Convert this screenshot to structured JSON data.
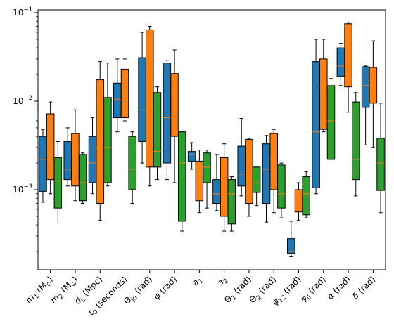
{
  "chart_data": {
    "type": "box",
    "title": "",
    "xlabel": "",
    "ylabel": "",
    "yscale": "log",
    "ylim": [
      0.0001,
      0.1
    ],
    "y_ticks": [
      {
        "value": 0.1,
        "base": "10",
        "exp": "−1"
      },
      {
        "value": 0.01,
        "base": "10",
        "exp": "−2"
      },
      {
        "value": 0.001,
        "base": "10",
        "exp": "−3"
      }
    ],
    "categories": [
      {
        "id": "m1",
        "parts": [
          {
            "t": "m",
            "i": true
          },
          {
            "t": "1",
            "sub": true
          },
          {
            "t": " (M"
          },
          {
            "t": "⊙",
            "sub": true
          },
          {
            "t": ")"
          }
        ]
      },
      {
        "id": "m2",
        "parts": [
          {
            "t": "m",
            "i": true
          },
          {
            "t": "2",
            "sub": true
          },
          {
            "t": " (M"
          },
          {
            "t": "⊙",
            "sub": true
          },
          {
            "t": ")"
          }
        ]
      },
      {
        "id": "dL",
        "parts": [
          {
            "t": "d",
            "i": true
          },
          {
            "t": "L",
            "sub": true
          },
          {
            "t": " (Mpc)"
          }
        ]
      },
      {
        "id": "t0",
        "parts": [
          {
            "t": "t",
            "i": true
          },
          {
            "t": "0",
            "sub": true
          },
          {
            "t": " (seconds)"
          }
        ]
      },
      {
        "id": "theta_jn",
        "parts": [
          {
            "t": "Θ"
          },
          {
            "t": "jn",
            "sub": true
          },
          {
            "t": " (rad)"
          }
        ]
      },
      {
        "id": "psi",
        "parts": [
          {
            "t": "ψ",
            "i": true
          },
          {
            "t": " (rad)"
          }
        ]
      },
      {
        "id": "a1",
        "parts": [
          {
            "t": "a",
            "i": true
          },
          {
            "t": "1",
            "sub": true
          }
        ]
      },
      {
        "id": "a2",
        "parts": [
          {
            "t": "a",
            "i": true
          },
          {
            "t": "2",
            "sub": true
          }
        ]
      },
      {
        "id": "theta1",
        "parts": [
          {
            "t": "Θ"
          },
          {
            "t": "1",
            "sub": true
          },
          {
            "t": " (rad)"
          }
        ]
      },
      {
        "id": "theta2",
        "parts": [
          {
            "t": "Θ"
          },
          {
            "t": "2",
            "sub": true
          },
          {
            "t": " (rad)"
          }
        ]
      },
      {
        "id": "phi12",
        "parts": [
          {
            "t": "φ",
            "i": true
          },
          {
            "t": "12",
            "sub": true
          },
          {
            "t": " (rad)"
          }
        ]
      },
      {
        "id": "phi_jl",
        "parts": [
          {
            "t": "φ",
            "i": true
          },
          {
            "t": "jl",
            "sub": true
          },
          {
            "t": " (rad)"
          }
        ]
      },
      {
        "id": "alpha",
        "parts": [
          {
            "t": "α",
            "i": true
          },
          {
            "t": " (rad)"
          }
        ]
      },
      {
        "id": "delta",
        "parts": [
          {
            "t": "δ",
            "i": true
          },
          {
            "t": " (rad)"
          }
        ]
      }
    ],
    "series": [
      {
        "color": "#1f77b4",
        "boxes": [
          {
            "whislo": 0.00072,
            "q1": 0.00095,
            "med": 0.0022,
            "q3": 0.004,
            "whishi": 0.0048
          },
          {
            "whislo": 0.0011,
            "q1": 0.0013,
            "med": 0.0017,
            "q3": 0.0035,
            "whishi": 0.005
          },
          {
            "whislo": 0.0009,
            "q1": 0.0012,
            "med": 0.002,
            "q3": 0.004,
            "whishi": 0.0065
          },
          {
            "whislo": 0.0045,
            "q1": 0.0065,
            "med": 0.0105,
            "q3": 0.016,
            "whishi": 0.03
          },
          {
            "whislo": 0.002,
            "q1": 0.0035,
            "med": 0.008,
            "q3": 0.031,
            "whishi": 0.06
          },
          {
            "whislo": 0.0013,
            "q1": 0.002,
            "med": 0.0065,
            "q3": 0.027,
            "whishi": 0.029
          },
          {
            "whislo": 0.0017,
            "q1": 0.0021,
            "med": 0.0025,
            "q3": 0.0027,
            "whishi": 0.0034
          },
          {
            "whislo": 0.00058,
            "q1": 0.0007,
            "med": 0.0009,
            "q3": 0.0013,
            "whishi": 0.0025
          },
          {
            "whislo": 0.00085,
            "q1": 0.0011,
            "med": 0.0015,
            "q3": 0.0031,
            "whishi": 0.0064
          },
          {
            "whislo": 0.00043,
            "q1": 0.0007,
            "med": 0.0017,
            "q3": 0.0033,
            "whishi": 0.0041
          },
          {
            "whislo": 0.000175,
            "q1": 0.00019,
            "med": 0.0002,
            "q3": 0.00028,
            "whishi": 0.00044
          },
          {
            "whislo": 0.0009,
            "q1": 0.00105,
            "med": 0.0045,
            "q3": 0.028,
            "whishi": 0.05
          },
          {
            "whislo": 0.015,
            "q1": 0.019,
            "med": 0.025,
            "q3": 0.04,
            "whishi": 0.045
          },
          {
            "whislo": 0.0032,
            "q1": 0.0085,
            "med": 0.015,
            "q3": 0.0245,
            "whishi": 0.025
          }
        ]
      },
      {
        "color": "#ff7f0e",
        "boxes": [
          {
            "whislo": 0.0009,
            "q1": 0.0013,
            "med": 0.0028,
            "q3": 0.0072,
            "whishi": 0.0098
          },
          {
            "whislo": 0.00075,
            "q1": 0.0011,
            "med": 0.0018,
            "q3": 0.0043,
            "whishi": 0.008
          },
          {
            "whislo": 0.00045,
            "q1": 0.0007,
            "med": 0.003,
            "q3": 0.0175,
            "whishi": 0.028
          },
          {
            "whislo": 0.006,
            "q1": 0.0065,
            "med": 0.0115,
            "q3": 0.023,
            "whishi": 0.03
          },
          {
            "whislo": 0.0011,
            "q1": 0.0018,
            "med": 0.02,
            "q3": 0.064,
            "whishi": 0.07
          },
          {
            "whislo": 0.0012,
            "q1": 0.004,
            "med": 0.012,
            "q3": 0.0205,
            "whishi": 0.038
          },
          {
            "whislo": 0.00055,
            "q1": 0.00075,
            "med": 0.0018,
            "q3": 0.0021,
            "whishi": 0.0028
          },
          {
            "whislo": 0.00034,
            "q1": 0.0005,
            "med": 0.001,
            "q3": 0.0023,
            "whishi": 0.0033
          },
          {
            "whislo": 0.0005,
            "q1": 0.0007,
            "med": 0.0014,
            "q3": 0.0037,
            "whishi": 0.0038
          },
          {
            "whislo": 0.00055,
            "q1": 0.001,
            "med": 0.0022,
            "q3": 0.0043,
            "whishi": 0.0048
          },
          {
            "whislo": 0.00045,
            "q1": 0.00056,
            "med": 0.00075,
            "q3": 0.001,
            "whishi": 0.0012
          },
          {
            "whislo": 0.0045,
            "q1": 0.0048,
            "med": 0.015,
            "q3": 0.03,
            "whishi": 0.05
          },
          {
            "whislo": 0.0075,
            "q1": 0.0145,
            "med": 0.03,
            "q3": 0.075,
            "whishi": 0.078
          },
          {
            "whislo": 0.003,
            "q1": 0.0095,
            "med": 0.017,
            "q3": 0.024,
            "whishi": 0.048
          }
        ]
      },
      {
        "color": "#2ca02c",
        "boxes": [
          {
            "whislo": 0.00042,
            "q1": 0.00062,
            "med": 0.00125,
            "q3": 0.0023,
            "whishi": 0.0035
          },
          {
            "whislo": 0.0007,
            "q1": 0.00075,
            "med": 0.0012,
            "q3": 0.0025,
            "whishi": 0.0026
          },
          {
            "whislo": 0.0011,
            "q1": 0.0012,
            "med": 0.003,
            "q3": 0.011,
            "whishi": 0.027
          },
          {
            "whislo": 0.0007,
            "q1": 0.001,
            "med": 0.0017,
            "q3": 0.004,
            "whishi": 0.0045
          },
          {
            "whislo": 0.0013,
            "q1": 0.0018,
            "med": 0.0027,
            "q3": 0.0125,
            "whishi": 0.0145
          },
          {
            "whislo": 0.00034,
            "q1": 0.00044,
            "med": 0.002,
            "q3": 0.0045,
            "whishi": 0.0045
          },
          {
            "whislo": 0.00062,
            "q1": 0.0012,
            "med": 0.0018,
            "q3": 0.0026,
            "whishi": 0.0028
          },
          {
            "whislo": 0.00034,
            "q1": 0.00041,
            "med": 0.0009,
            "q3": 0.0013,
            "whishi": 0.0014
          },
          {
            "whislo": 0.00066,
            "q1": 0.00093,
            "med": 0.0012,
            "q3": 0.0018,
            "whishi": 0.0018
          },
          {
            "whislo": 0.00048,
            "q1": 0.00062,
            "med": 0.0009,
            "q3": 0.0019,
            "whishi": 0.002
          },
          {
            "whislo": 0.00048,
            "q1": 0.00052,
            "med": 0.0009,
            "q3": 0.0014,
            "whishi": 0.0016
          },
          {
            "whislo": 0.0022,
            "q1": 0.0022,
            "med": 0.006,
            "q3": 0.015,
            "whishi": 0.018
          },
          {
            "whislo": 0.00085,
            "q1": 0.0013,
            "med": 0.0022,
            "q3": 0.0098,
            "whishi": 0.0125
          },
          {
            "whislo": 0.00055,
            "q1": 0.00098,
            "med": 0.002,
            "q3": 0.0038,
            "whishi": 0.0095
          }
        ]
      }
    ],
    "median_color": "#ff7f0e",
    "grid": false,
    "legend": "none"
  }
}
